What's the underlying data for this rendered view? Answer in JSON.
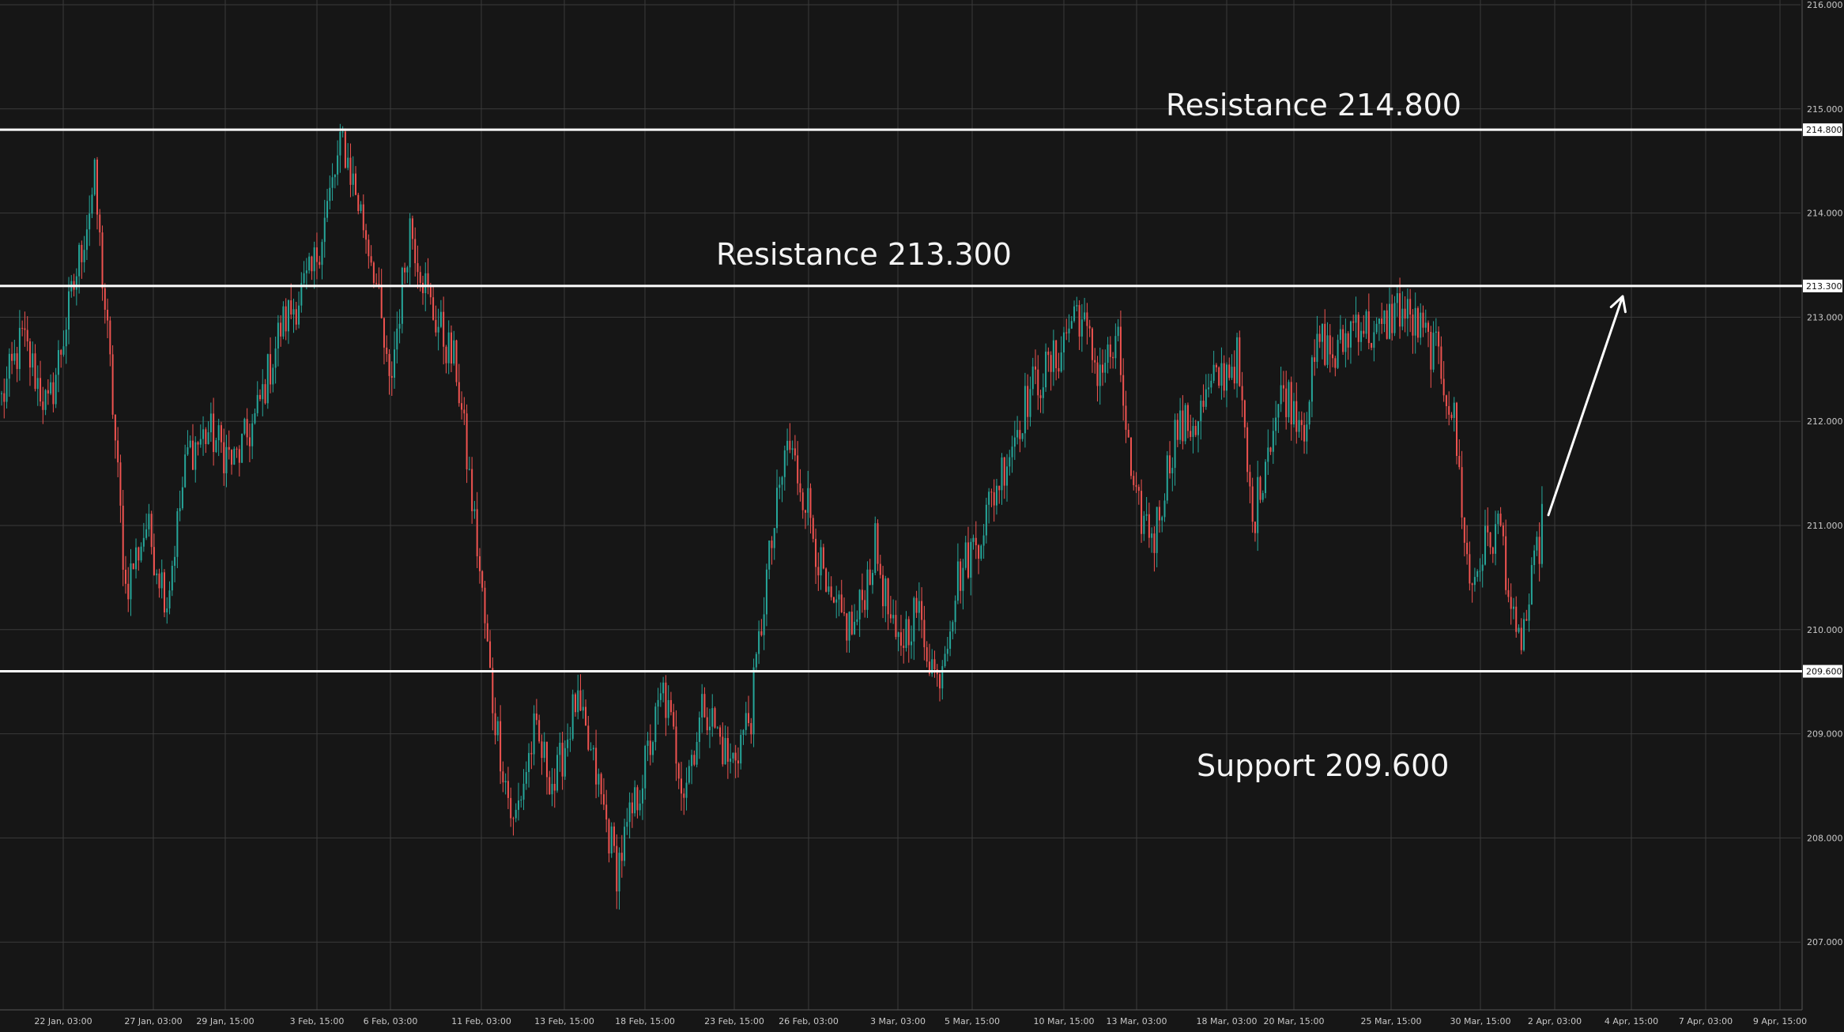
{
  "colors": {
    "background": "#161616",
    "grid": "#3a3a3a",
    "level_line": "#ffffff",
    "up_candle": "#26a69a",
    "down_candle": "#ef5350",
    "arrow": "#ffffff",
    "text": "#c8c8c8"
  },
  "chart_data": {
    "type": "candlestick",
    "title": "",
    "xlabel": "",
    "ylabel": "",
    "ylim": [
      206.3,
      216.0
    ],
    "grid": true,
    "y_ticks": [
      "216.000",
      "215.000",
      "214.000",
      "213.000",
      "212.000",
      "211.000",
      "210.000",
      "209.000",
      "208.000",
      "207.000"
    ],
    "x_ticks": [
      "22 Jan, 03:00",
      "27 Jan, 03:00",
      "29 Jan, 15:00",
      "3 Feb, 15:00",
      "6 Feb, 03:00",
      "11 Feb, 03:00",
      "13 Feb, 15:00",
      "18 Feb, 15:00",
      "23 Feb, 15:00",
      "26 Feb, 03:00",
      "3 Mar, 03:00",
      "5 Mar, 15:00",
      "10 Mar, 15:00",
      "13 Mar, 03:00",
      "18 Mar, 03:00",
      "20 Mar, 15:00",
      "25 Mar, 15:00",
      "30 Mar, 15:00",
      "2 Apr, 03:00",
      "4 Apr, 15:00",
      "7 Apr, 03:00",
      "9 Apr, 15:00"
    ],
    "price_path": [
      {
        "i": 0,
        "p": 212.2
      },
      {
        "i": 8,
        "p": 212.8
      },
      {
        "i": 18,
        "p": 212.1
      },
      {
        "i": 28,
        "p": 213.3
      },
      {
        "i": 36,
        "p": 214.3
      },
      {
        "i": 42,
        "p": 212.5
      },
      {
        "i": 48,
        "p": 210.4
      },
      {
        "i": 56,
        "p": 211.0
      },
      {
        "i": 64,
        "p": 210.3
      },
      {
        "i": 72,
        "p": 211.7
      },
      {
        "i": 80,
        "p": 211.9
      },
      {
        "i": 90,
        "p": 211.6
      },
      {
        "i": 98,
        "p": 212.0
      },
      {
        "i": 108,
        "p": 212.9
      },
      {
        "i": 120,
        "p": 213.4
      },
      {
        "i": 132,
        "p": 214.7
      },
      {
        "i": 138,
        "p": 214.1
      },
      {
        "i": 144,
        "p": 213.5
      },
      {
        "i": 150,
        "p": 212.3
      },
      {
        "i": 158,
        "p": 213.9
      },
      {
        "i": 166,
        "p": 213.1
      },
      {
        "i": 176,
        "p": 212.5
      },
      {
        "i": 184,
        "p": 210.8
      },
      {
        "i": 190,
        "p": 209.3
      },
      {
        "i": 198,
        "p": 208.1
      },
      {
        "i": 206,
        "p": 209.0
      },
      {
        "i": 214,
        "p": 208.5
      },
      {
        "i": 222,
        "p": 209.3
      },
      {
        "i": 230,
        "p": 208.6
      },
      {
        "i": 238,
        "p": 207.7
      },
      {
        "i": 246,
        "p": 208.4
      },
      {
        "i": 256,
        "p": 209.4
      },
      {
        "i": 264,
        "p": 208.5
      },
      {
        "i": 272,
        "p": 209.3
      },
      {
        "i": 282,
        "p": 208.7
      },
      {
        "i": 290,
        "p": 209.2
      },
      {
        "i": 296,
        "p": 210.5
      },
      {
        "i": 304,
        "p": 211.8
      },
      {
        "i": 312,
        "p": 211.2
      },
      {
        "i": 320,
        "p": 210.2
      },
      {
        "i": 330,
        "p": 210.0
      },
      {
        "i": 338,
        "p": 210.8
      },
      {
        "i": 346,
        "p": 209.8
      },
      {
        "i": 354,
        "p": 210.2
      },
      {
        "i": 362,
        "p": 209.5
      },
      {
        "i": 370,
        "p": 210.5
      },
      {
        "i": 378,
        "p": 210.9
      },
      {
        "i": 388,
        "p": 211.6
      },
      {
        "i": 398,
        "p": 212.3
      },
      {
        "i": 408,
        "p": 212.6
      },
      {
        "i": 416,
        "p": 213.1
      },
      {
        "i": 424,
        "p": 212.5
      },
      {
        "i": 432,
        "p": 212.7
      },
      {
        "i": 438,
        "p": 211.2
      },
      {
        "i": 446,
        "p": 210.9
      },
      {
        "i": 454,
        "p": 211.9
      },
      {
        "i": 462,
        "p": 212.0
      },
      {
        "i": 470,
        "p": 212.4
      },
      {
        "i": 478,
        "p": 212.6
      },
      {
        "i": 484,
        "p": 211.0
      },
      {
        "i": 490,
        "p": 211.8
      },
      {
        "i": 496,
        "p": 212.3
      },
      {
        "i": 504,
        "p": 212.0
      },
      {
        "i": 510,
        "p": 212.8
      },
      {
        "i": 516,
        "p": 212.6
      },
      {
        "i": 524,
        "p": 213.0
      },
      {
        "i": 532,
        "p": 212.8
      },
      {
        "i": 540,
        "p": 213.1
      },
      {
        "i": 548,
        "p": 212.9
      },
      {
        "i": 556,
        "p": 212.6
      },
      {
        "i": 562,
        "p": 212.0
      },
      {
        "i": 568,
        "p": 210.4
      },
      {
        "i": 574,
        "p": 210.8
      },
      {
        "i": 580,
        "p": 211.0
      },
      {
        "i": 586,
        "p": 209.8
      },
      {
        "i": 590,
        "p": 210.1
      },
      {
        "i": 596,
        "p": 211.0
      }
    ],
    "n_bars": 597,
    "levels": [
      {
        "name": "Resistance 214.800",
        "value": 214.8,
        "tag": "214.800"
      },
      {
        "name": "Resistance 213.300",
        "value": 213.3,
        "tag": "213.300"
      },
      {
        "name": "Support 209.600",
        "value": 209.6,
        "tag": "209.600"
      }
    ],
    "projection_arrow": {
      "from_price": 211.1,
      "to_price": 213.2
    }
  }
}
